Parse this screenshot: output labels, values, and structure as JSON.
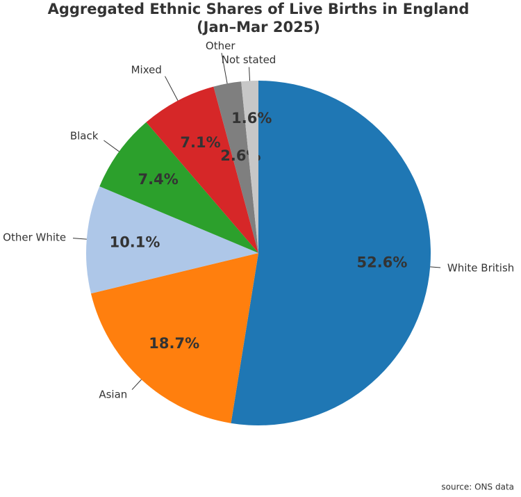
{
  "chart_data": {
    "type": "pie",
    "title": [
      "Aggregated Ethnic Shares of Live Births in England",
      "(Jan–Mar 2025)"
    ],
    "categories": [
      "White British",
      "Asian",
      "Other White",
      "Black",
      "Mixed",
      "Other",
      "Not stated"
    ],
    "values": [
      52.6,
      18.7,
      10.1,
      7.4,
      7.1,
      2.6,
      1.6
    ],
    "value_labels": [
      "52.6%",
      "18.7%",
      "10.1%",
      "7.4%",
      "7.1%",
      "2.6%",
      "1.6%"
    ],
    "colors": [
      "#1f77b4",
      "#ff7f0e",
      "#aec7e8",
      "#2ca02c",
      "#d62728",
      "#7f7f7f",
      "#c7c7c7"
    ],
    "source": "source: ONS data"
  }
}
